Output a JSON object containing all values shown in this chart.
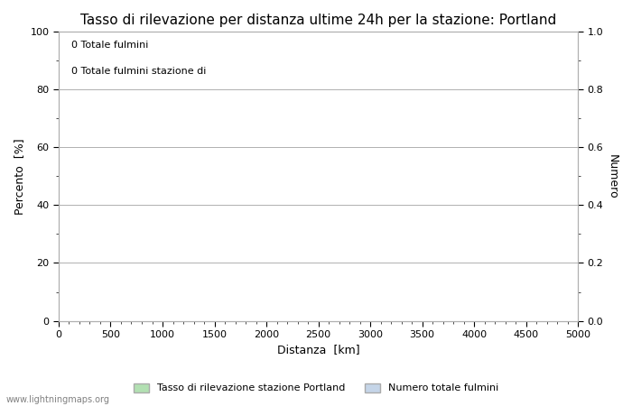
{
  "title": "Tasso di rilevazione per distanza ultime 24h per la stazione: Portland",
  "xlabel": "Distanza  [km]",
  "ylabel_left": "Percento  [%]",
  "ylabel_right": "Numero",
  "xlim": [
    0,
    5000
  ],
  "ylim_left": [
    0,
    100
  ],
  "ylim_right": [
    0.0,
    1.0
  ],
  "xticks": [
    0,
    500,
    1000,
    1500,
    2000,
    2500,
    3000,
    3500,
    4000,
    4500,
    5000
  ],
  "yticks_left": [
    0,
    20,
    40,
    60,
    80,
    100
  ],
  "yticks_right": [
    0.0,
    0.2,
    0.4,
    0.6,
    0.8,
    1.0
  ],
  "annotation_line1": "0 Totale fulmini",
  "annotation_line2": "0 Totale fulmini stazione di",
  "legend_label_green": "Tasso di rilevazione stazione Portland",
  "legend_label_blue": "Numero totale fulmini",
  "legend_color_green": "#b2e0b2",
  "legend_color_blue": "#c5d5e8",
  "grid_color": "#b0b0b0",
  "background_color": "#ffffff",
  "watermark": "www.lightningmaps.org",
  "title_fontsize": 11,
  "axis_label_fontsize": 9,
  "tick_fontsize": 8,
  "annotation_fontsize": 8,
  "legend_fontsize": 8,
  "watermark_fontsize": 7
}
